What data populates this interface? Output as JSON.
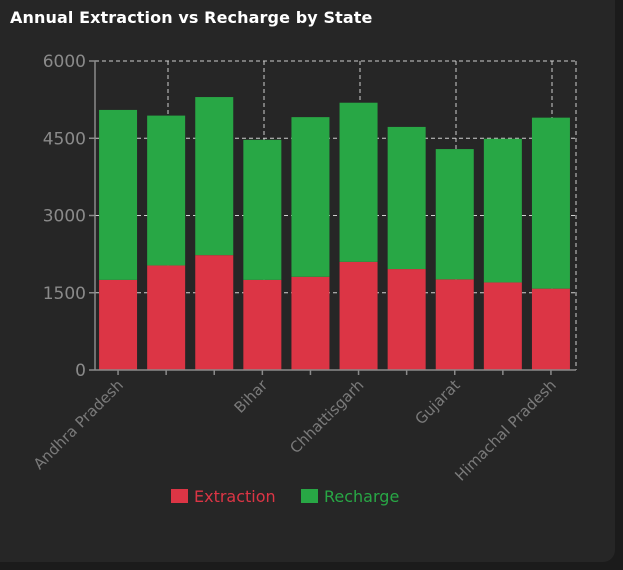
{
  "chart_data": {
    "type": "bar",
    "stacked": true,
    "title": "Annual Extraction vs Recharge by State",
    "categories": [
      "Andhra Pradesh",
      "",
      "",
      "Bihar",
      "",
      "Chhattisgarh",
      "",
      "Gujarat",
      "",
      "Himachal Pradesh"
    ],
    "series": [
      {
        "name": "Extraction",
        "color": "#dc3545",
        "values": [
          1750,
          2030,
          2230,
          1750,
          1810,
          2100,
          1960,
          1760,
          1700,
          1580
        ]
      },
      {
        "name": "Recharge",
        "color": "#28a745",
        "values": [
          3300,
          2910,
          3070,
          2720,
          3100,
          3090,
          2760,
          2530,
          2790,
          3320
        ]
      }
    ],
    "ylim": [
      0,
      6000
    ],
    "yticks": [
      0,
      1500,
      3000,
      4500,
      6000
    ],
    "grid": true,
    "legend": "bottom-center"
  },
  "colors": {
    "background": "#262626",
    "grid": "#cfcfcf",
    "axis": "#8a8a8a"
  }
}
